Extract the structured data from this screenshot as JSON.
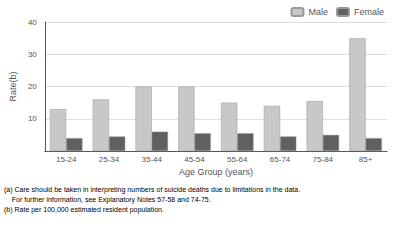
{
  "chart_data": {
    "type": "bar",
    "categories": [
      "15-24",
      "25-34",
      "35-44",
      "45-54",
      "55-64",
      "65-74",
      "75-84",
      "85+"
    ],
    "series": [
      {
        "name": "Male",
        "color": "#c8c8c8",
        "values": [
          13,
          16,
          20,
          20,
          15,
          14,
          15.5,
          35
        ]
      },
      {
        "name": "Female",
        "color": "#606060",
        "values": [
          4,
          4.5,
          6,
          5.5,
          5.5,
          4.5,
          5,
          4
        ]
      }
    ],
    "x_label": "Age Group (years)",
    "y_label": "Rate(b)",
    "ylim": [
      0,
      40
    ],
    "yticks": [
      10,
      20,
      30,
      40
    ],
    "grid": true,
    "legend": "upper right",
    "annotations": [
      "(a) Care should be taken in interpreting numbers of suicide deaths due to limitations in the data.",
      "    For further information, see Explanatory Notes 57-58 and 74-75.",
      "(b) Rate per 100,000 estimated resident population."
    ]
  }
}
